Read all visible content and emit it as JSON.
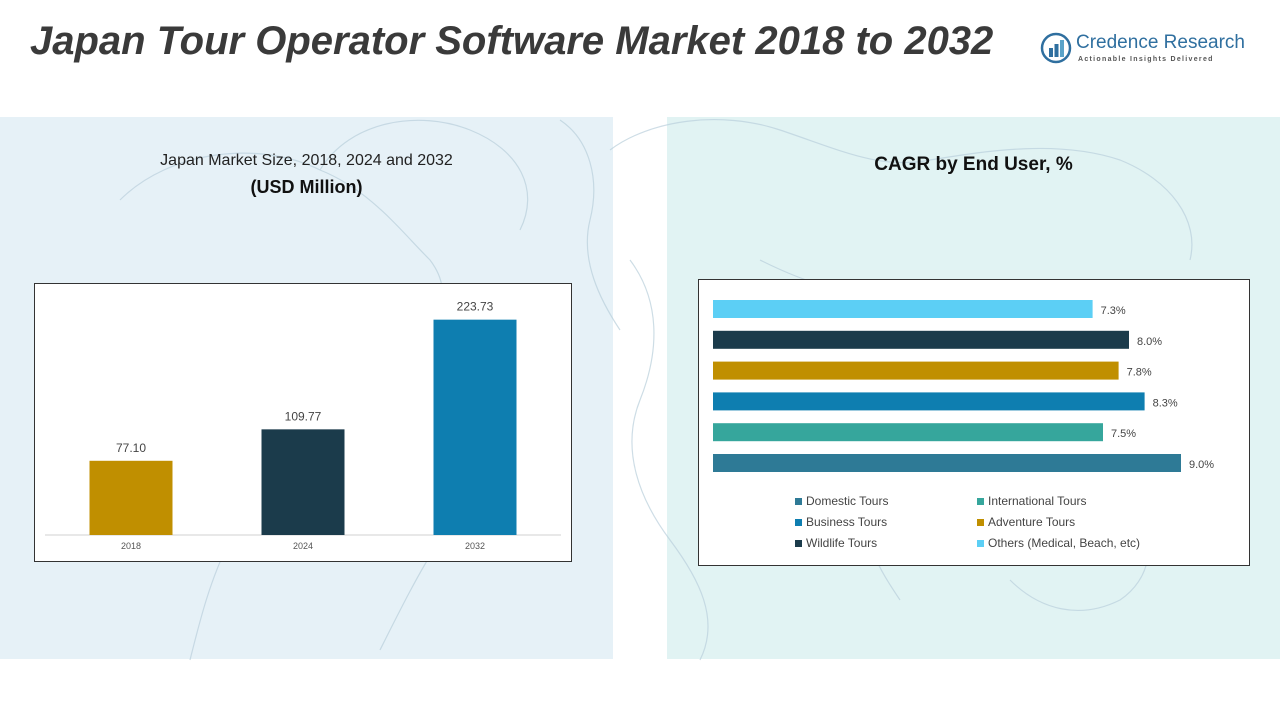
{
  "title": "Japan Tour Operator Software Market 2018 to 2032",
  "logo": {
    "name": "Credence Research",
    "tagline": "Actionable Insights Delivered",
    "icon": "credence-logo-icon"
  },
  "left_panel": {
    "subtitle": "Japan Market Size, 2018, 2024 and 2032",
    "unit": "(USD Million)"
  },
  "right_panel": {
    "title": "CAGR by End User, %"
  },
  "colors": {
    "gold": "#C08F00",
    "dark_navy": "#1B3B4B",
    "blue": "#0E7EB0",
    "steel_teal": "#2E7A96",
    "teal": "#36A69C",
    "sky": "#5CCFF5"
  },
  "chart_data": [
    {
      "type": "bar",
      "categories": [
        "2018",
        "2024",
        "2032"
      ],
      "values": [
        77.1,
        109.77,
        223.73
      ],
      "value_labels": [
        "77.10",
        "109.77",
        "223.73"
      ],
      "bar_colors": [
        "#C08F00",
        "#1B3B4B",
        "#0E7EB0"
      ],
      "ylim": [
        0,
        240
      ],
      "grid": false,
      "legend": "none"
    },
    {
      "type": "bar",
      "orientation": "horizontal",
      "categories": [
        "Others (Medical, Beach, etc)",
        "Wildlife Tours",
        "Adventure Tours",
        "Business Tours",
        "International Tours",
        "Domestic Tours"
      ],
      "values": [
        7.3,
        8.0,
        7.8,
        8.3,
        7.5,
        9.0
      ],
      "value_labels": [
        "7.3%",
        "8.0%",
        "7.8%",
        "8.3%",
        "7.5%",
        "9.0%"
      ],
      "bar_colors": [
        "#5CCFF5",
        "#1B3B4B",
        "#C08F00",
        "#0E7EB0",
        "#36A69C",
        "#2E7A96"
      ],
      "xlim": [
        0,
        9.5
      ],
      "grid": false,
      "legend": "bottom",
      "legend_items": [
        {
          "label": "Domestic Tours",
          "color": "#2E7A96"
        },
        {
          "label": "International Tours",
          "color": "#36A69C"
        },
        {
          "label": "Business Tours",
          "color": "#0E7EB0"
        },
        {
          "label": "Adventure Tours",
          "color": "#C08F00"
        },
        {
          "label": "Wildlife Tours",
          "color": "#1B3B4B"
        },
        {
          "label": "Others (Medical, Beach, etc)",
          "color": "#5CCFF5"
        }
      ]
    }
  ]
}
